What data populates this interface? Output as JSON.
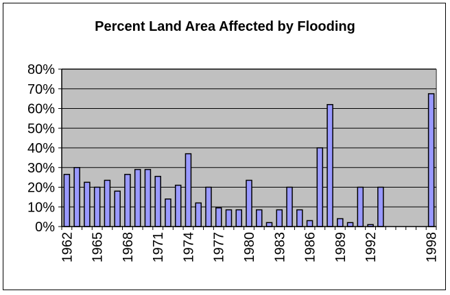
{
  "chart_data": {
    "type": "bar",
    "title": "Percent Land Area Affected by Flooding",
    "xlabel": "",
    "ylabel": "",
    "ylim": [
      0,
      80
    ],
    "yticks": [
      "0%",
      "10%",
      "20%",
      "30%",
      "40%",
      "50%",
      "60%",
      "70%",
      "80%"
    ],
    "grid": true,
    "categories": [
      1962,
      1963,
      1964,
      1965,
      1966,
      1967,
      1968,
      1969,
      1970,
      1971,
      1972,
      1973,
      1974,
      1975,
      1976,
      1977,
      1978,
      1979,
      1980,
      1981,
      1982,
      1983,
      1984,
      1985,
      1986,
      1987,
      1988,
      1989,
      1990,
      1991,
      1992,
      1993,
      1994,
      1995,
      1996,
      1997,
      1998
    ],
    "values": [
      26.5,
      30,
      22.5,
      20,
      23.5,
      18,
      26.5,
      29,
      29,
      25.5,
      14,
      21,
      37,
      12,
      20,
      9.5,
      8.5,
      8.5,
      23.5,
      8.5,
      2,
      8.5,
      20,
      8.5,
      3,
      40,
      62,
      4,
      2,
      20,
      1,
      20,
      null,
      null,
      null,
      null,
      67.5
    ],
    "xtick_labels": [
      "1962",
      "1965",
      "1968",
      "1971",
      "1974",
      "1977",
      "1980",
      "1983",
      "1986",
      "1989",
      "1992",
      "1998"
    ],
    "colors": {
      "bar": "#9999ff",
      "plot_bg": "#c0c0c0"
    }
  }
}
